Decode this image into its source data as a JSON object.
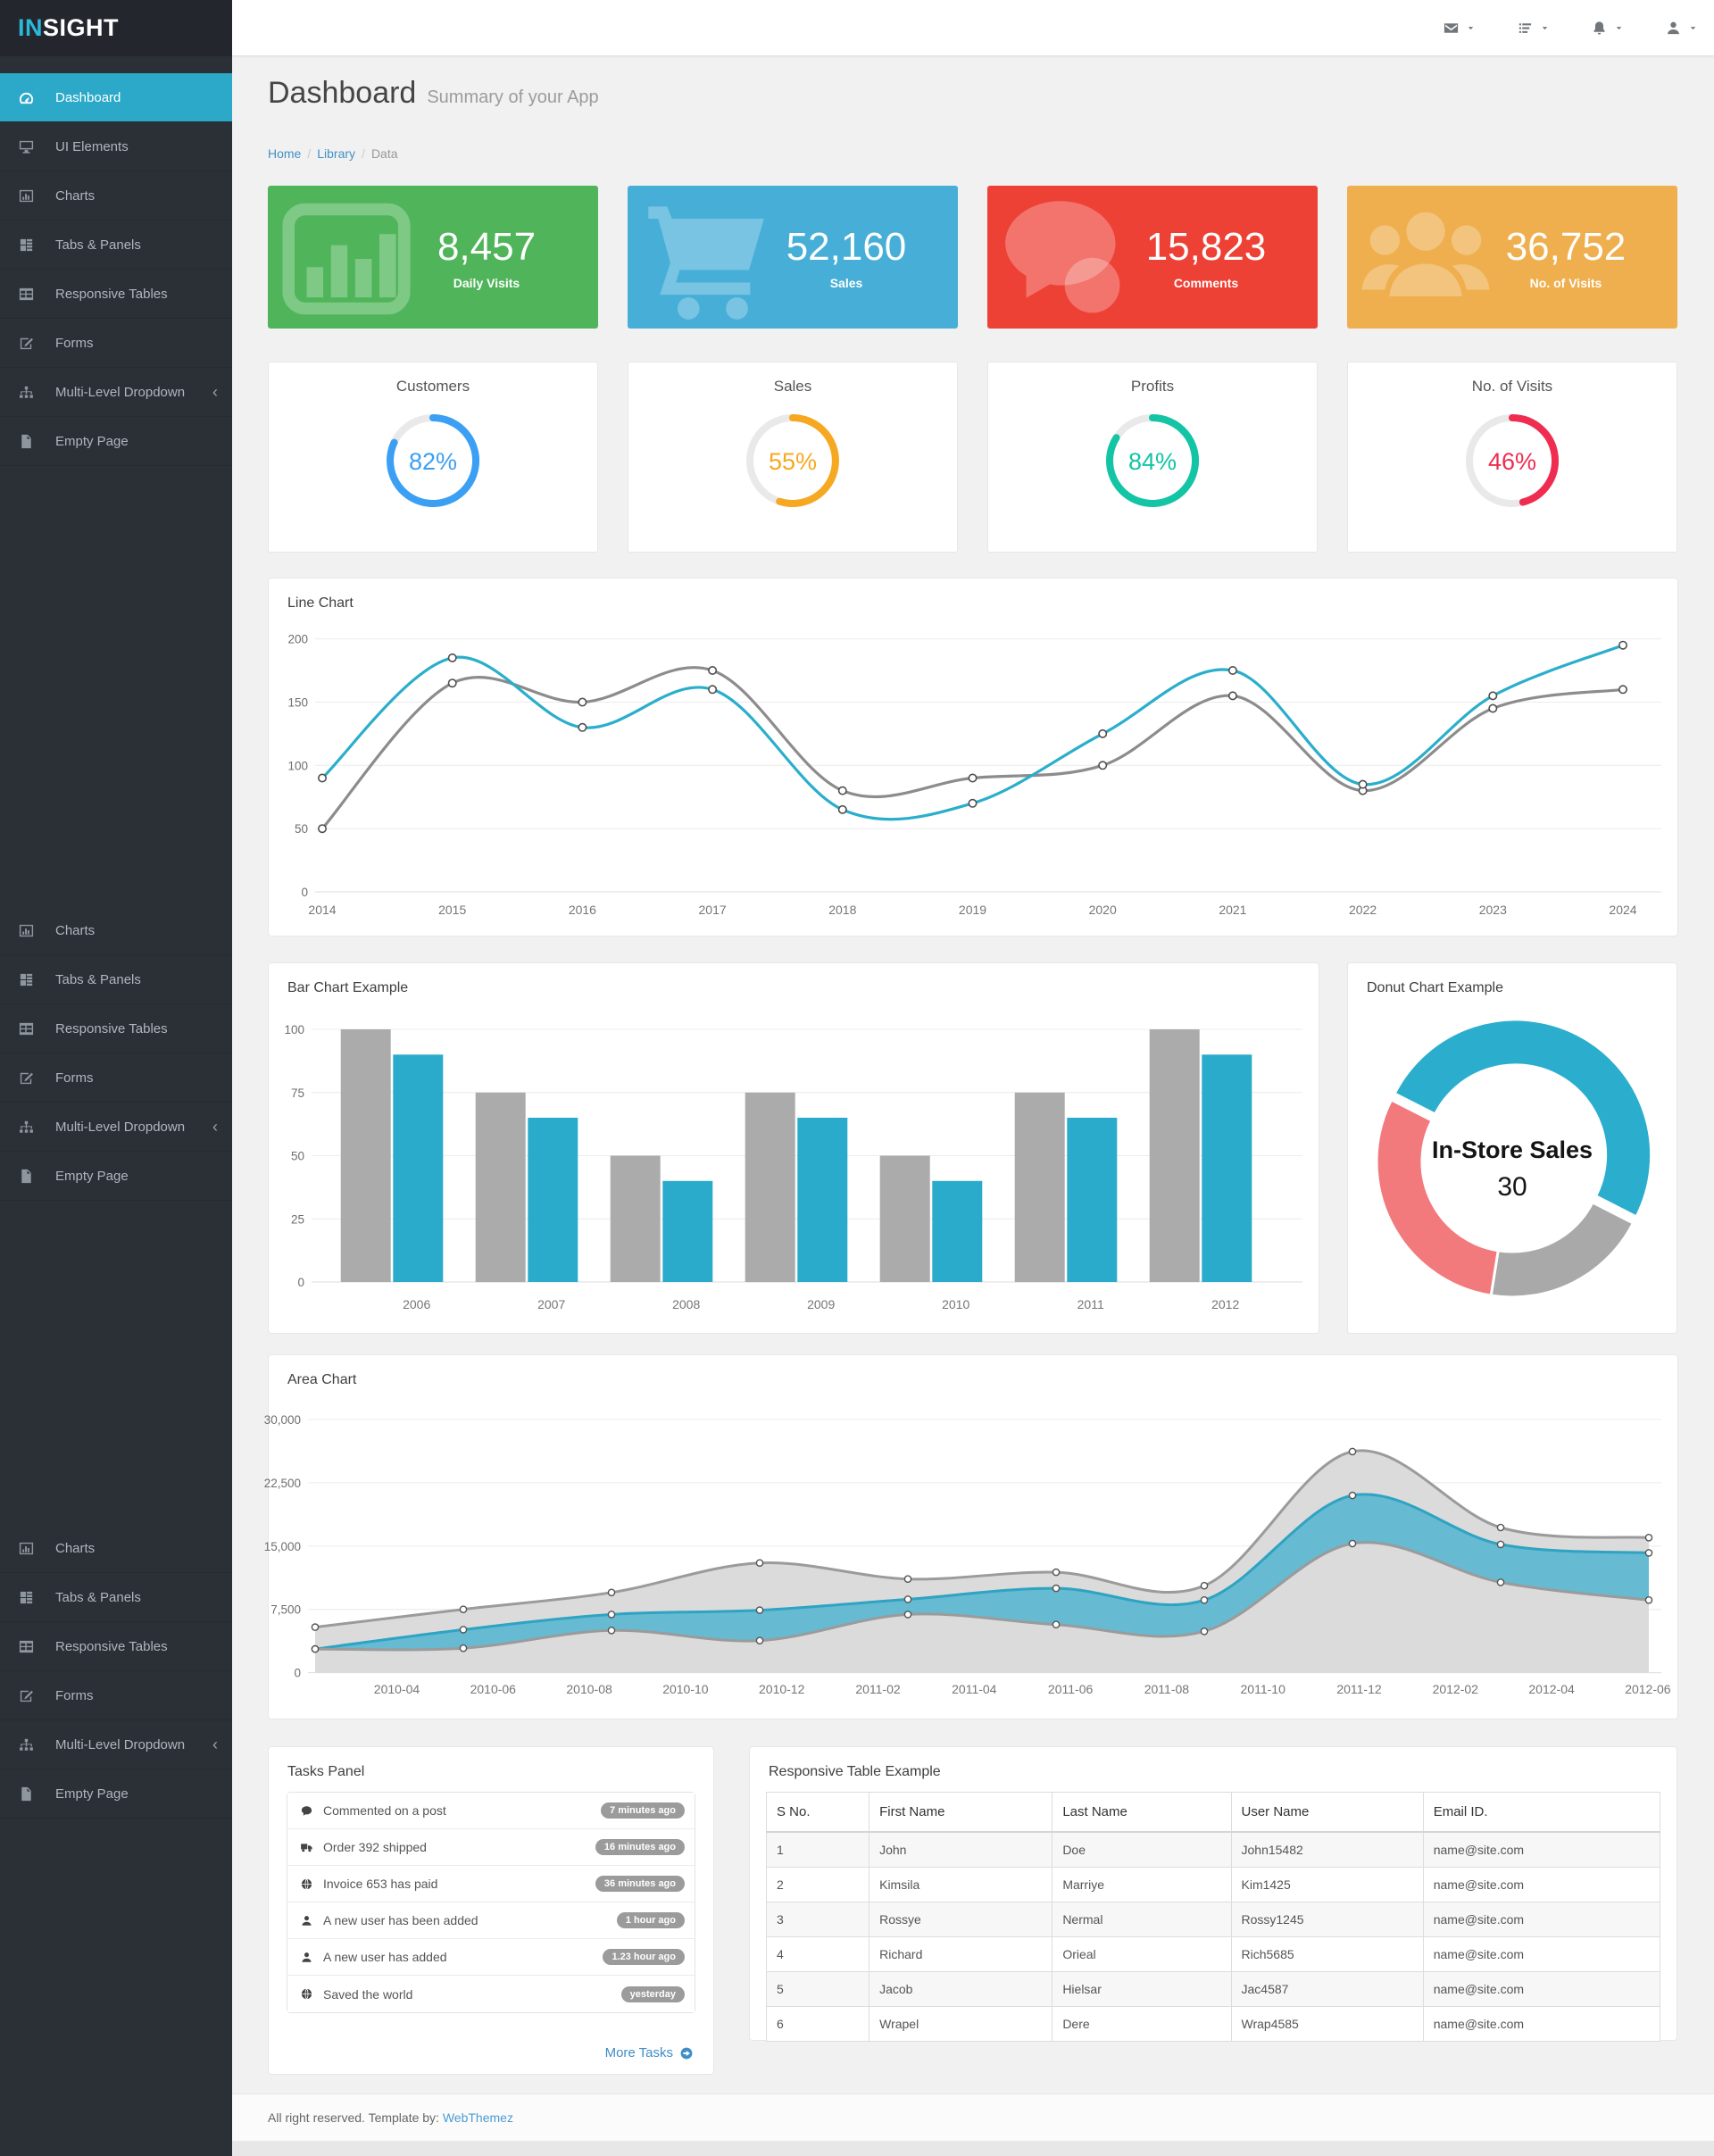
{
  "app": {
    "brand_prefix": "IN",
    "brand_suffix": "SIGHT"
  },
  "topbar": {
    "menus": [
      {
        "name": "messages",
        "icon": "envelope"
      },
      {
        "name": "tasks",
        "icon": "tasks"
      },
      {
        "name": "notifications",
        "icon": "bell"
      },
      {
        "name": "account",
        "icon": "user"
      }
    ]
  },
  "sidebar": {
    "groups": [
      {
        "items": [
          {
            "label": "Dashboard",
            "icon": "dashboard",
            "active": true
          },
          {
            "label": "UI Elements",
            "icon": "desktop"
          },
          {
            "label": "Charts",
            "icon": "charts"
          },
          {
            "label": "Tabs & Panels",
            "icon": "tabs"
          },
          {
            "label": "Responsive Tables",
            "icon": "table"
          },
          {
            "label": "Forms",
            "icon": "forms"
          },
          {
            "label": "Multi-Level Dropdown",
            "icon": "sitemap",
            "chevron": true
          },
          {
            "label": "Empty Page",
            "icon": "file"
          }
        ]
      },
      {
        "items": [
          {
            "label": "Charts",
            "icon": "charts"
          },
          {
            "label": "Tabs & Panels",
            "icon": "tabs"
          },
          {
            "label": "Responsive Tables",
            "icon": "table"
          },
          {
            "label": "Forms",
            "icon": "forms"
          },
          {
            "label": "Multi-Level Dropdown",
            "icon": "sitemap",
            "chevron": true
          },
          {
            "label": "Empty Page",
            "icon": "file"
          }
        ]
      },
      {
        "items": [
          {
            "label": "Charts",
            "icon": "charts"
          },
          {
            "label": "Tabs & Panels",
            "icon": "tabs"
          },
          {
            "label": "Responsive Tables",
            "icon": "table"
          },
          {
            "label": "Forms",
            "icon": "forms"
          },
          {
            "label": "Multi-Level Dropdown",
            "icon": "sitemap",
            "chevron": true
          },
          {
            "label": "Empty Page",
            "icon": "file"
          }
        ]
      }
    ]
  },
  "page": {
    "title": "Dashboard",
    "subtitle": "Summary of your App",
    "breadcrumb": [
      {
        "label": "Home",
        "link": true
      },
      {
        "label": "Library",
        "link": true
      },
      {
        "label": "Data",
        "link": false
      }
    ]
  },
  "stat_cards": [
    {
      "value": "8,457",
      "label": "Daily Visits",
      "color": "#50B55A",
      "icon": "statchart"
    },
    {
      "value": "52,160",
      "label": "Sales",
      "color": "#47AFD7",
      "icon": "statcart"
    },
    {
      "value": "15,823",
      "label": "Comments",
      "color": "#EE4136",
      "icon": "statcomments"
    },
    {
      "value": "36,752",
      "label": "No. of Visits",
      "color": "#EFAF4E",
      "icon": "statusers"
    }
  ],
  "gauge_cards": [
    {
      "title": "Customers",
      "percent": 82,
      "color": "#3B9FF3"
    },
    {
      "title": "Sales",
      "percent": 55,
      "color": "#F6A821"
    },
    {
      "title": "Profits",
      "percent": 84,
      "color": "#13C4A5"
    },
    {
      "title": "No. of Visits",
      "percent": 46,
      "color": "#EE2D50"
    }
  ],
  "line_chart": {
    "type": "line",
    "title": "Line Chart",
    "x": [
      "2014",
      "2015",
      "2016",
      "2017",
      "2018",
      "2019",
      "2020",
      "2021",
      "2022",
      "2023",
      "2024"
    ],
    "yticks": [
      "0",
      "50",
      "100",
      "150",
      "200"
    ],
    "ymax": 200,
    "series": [
      {
        "name": "series-blue",
        "color": "#2AAECB",
        "values": [
          90,
          185,
          130,
          160,
          65,
          70,
          125,
          175,
          85,
          155,
          195
        ]
      },
      {
        "name": "series-gray",
        "color": "#8C8C8C",
        "values": [
          50,
          165,
          150,
          175,
          80,
          90,
          100,
          155,
          80,
          145,
          160
        ]
      }
    ]
  },
  "bar_chart": {
    "type": "bar",
    "title": "Bar Chart Example",
    "categories": [
      "2006",
      "2007",
      "2008",
      "2009",
      "2010",
      "2011",
      "2012"
    ],
    "yticks": [
      "0",
      "25",
      "50",
      "75",
      "100"
    ],
    "ymax": 100,
    "series": [
      {
        "name": "series-gray",
        "color": "#ABABAB",
        "values": [
          100,
          75,
          50,
          75,
          50,
          75,
          100
        ]
      },
      {
        "name": "series-blue",
        "color": "#2AABCB",
        "values": [
          90,
          65,
          40,
          65,
          40,
          65,
          90
        ]
      }
    ]
  },
  "donut_chart": {
    "type": "donut",
    "title": "Donut Chart Example",
    "center_label": "In-Store Sales",
    "center_value": "30",
    "start_angle": -63,
    "slices": [
      {
        "value": 50,
        "color": "#2BAECD",
        "exploded": true
      },
      {
        "value": 20,
        "color": "#A9A9A9",
        "exploded": false
      },
      {
        "value": 30,
        "color": "#F2797C",
        "exploded": false
      }
    ]
  },
  "area_chart": {
    "type": "area",
    "title": "Area Chart",
    "x_labels": [
      "2010-04",
      "2010-06",
      "2010-08",
      "2010-10",
      "2010-12",
      "2011-02",
      "2011-04",
      "2011-06",
      "2011-08",
      "2011-10",
      "2011-12",
      "2012-02",
      "2012-04",
      "2012-06"
    ],
    "x_points": [
      "2010-03",
      "2010-06",
      "2010-09",
      "2010-12",
      "2011-03",
      "2011-06",
      "2011-09",
      "2011-12",
      "2012-03",
      "2012-06"
    ],
    "yticks": [
      "0",
      "7,500",
      "15,000",
      "22,500",
      "30,000"
    ],
    "ymax": 30000,
    "series": [
      {
        "name": "upper",
        "line_color": "#9B9B9B",
        "fill_color": "#DBDBDB",
        "values": [
          5400,
          7500,
          9500,
          13000,
          11100,
          11900,
          10300,
          26200,
          17200,
          16000
        ]
      },
      {
        "name": "middle",
        "line_color": "#2FA3C2",
        "fill_color": "#66BAD2",
        "values": [
          2800,
          5100,
          6900,
          7400,
          8700,
          10000,
          8600,
          21000,
          15200,
          14200
        ]
      },
      {
        "name": "lower",
        "line_color": "#9B9B9B",
        "fill_color": "#DBDBDB",
        "values": [
          2800,
          2900,
          5000,
          3800,
          6900,
          5700,
          4900,
          15300,
          10700,
          8600
        ]
      }
    ]
  },
  "tasks_panel": {
    "title": "Tasks Panel",
    "more_label": "More Tasks",
    "items": [
      {
        "icon": "comment",
        "text": "Commented on a post",
        "badge": "7 minutes ago"
      },
      {
        "icon": "truck",
        "text": "Order 392 shipped",
        "badge": "16 minutes ago"
      },
      {
        "icon": "globe",
        "text": "Invoice 653 has paid",
        "badge": "36 minutes ago"
      },
      {
        "icon": "user",
        "text": "A new user has been added",
        "badge": "1 hour ago"
      },
      {
        "icon": "user",
        "text": "A new user has added",
        "badge": "1.23 hour ago"
      },
      {
        "icon": "globe",
        "text": "Saved the world",
        "badge": "yesterday"
      }
    ]
  },
  "table_panel": {
    "title": "Responsive Table Example",
    "headers": [
      "S No.",
      "First Name",
      "Last Name",
      "User Name",
      "Email ID."
    ],
    "col_widths_pct": [
      11.5,
      20.5,
      20,
      21.5,
      26.5
    ],
    "rows": [
      [
        "1",
        "John",
        "Doe",
        "John15482",
        "name@site.com"
      ],
      [
        "2",
        "Kimsila",
        "Marriye",
        "Kim1425",
        "name@site.com"
      ],
      [
        "3",
        "Rossye",
        "Nermal",
        "Rossy1245",
        "name@site.com"
      ],
      [
        "4",
        "Richard",
        "Orieal",
        "Rich5685",
        "name@site.com"
      ],
      [
        "5",
        "Jacob",
        "Hielsar",
        "Jac4587",
        "name@site.com"
      ],
      [
        "6",
        "Wrapel",
        "Dere",
        "Wrap4585",
        "name@site.com"
      ]
    ]
  },
  "footer": {
    "text": "All right reserved. Template by:",
    "link_label": "WebThemez"
  }
}
